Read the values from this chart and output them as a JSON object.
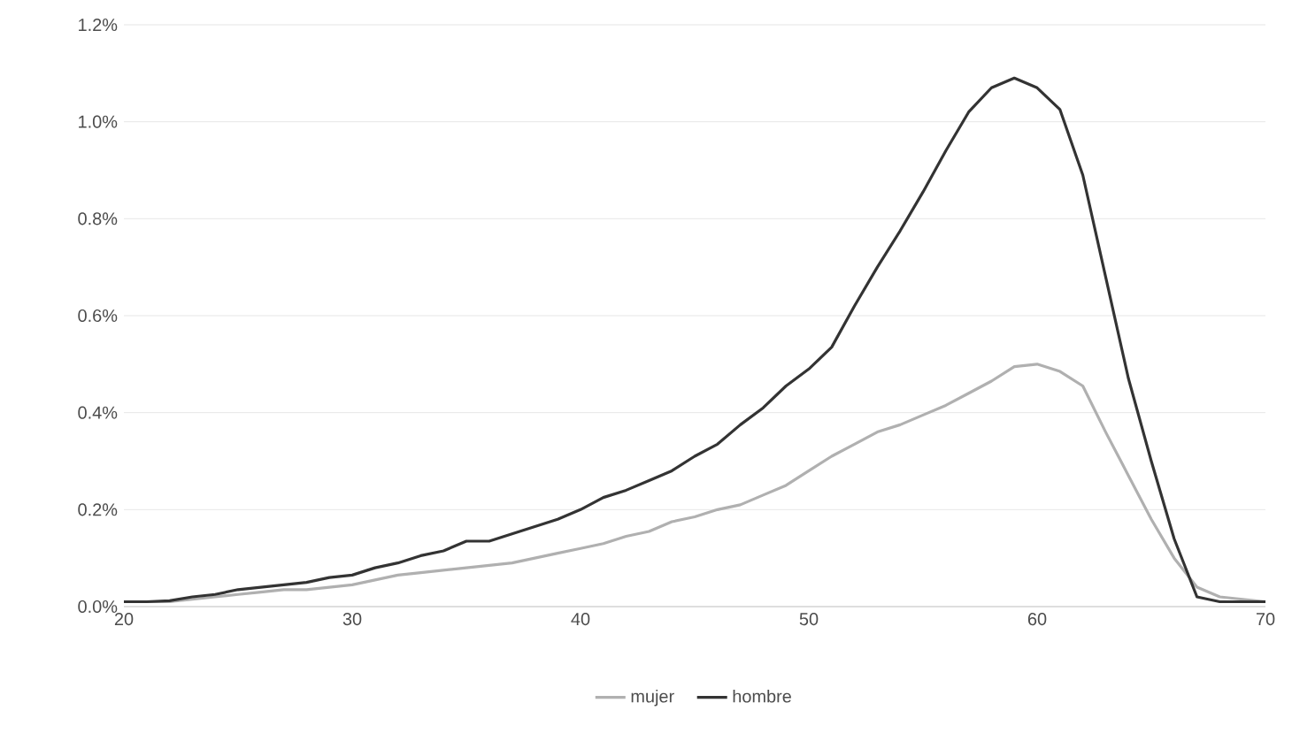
{
  "chart_data": {
    "type": "line",
    "x": [
      20,
      21,
      22,
      23,
      24,
      25,
      26,
      27,
      28,
      29,
      30,
      31,
      32,
      33,
      34,
      35,
      36,
      37,
      38,
      39,
      40,
      41,
      42,
      43,
      44,
      45,
      46,
      47,
      48,
      49,
      50,
      51,
      52,
      53,
      54,
      55,
      56,
      57,
      58,
      59,
      60,
      61,
      62,
      63,
      64,
      65,
      66,
      67,
      68,
      69,
      70
    ],
    "series": [
      {
        "name": "mujer",
        "color": "#b0b0b0",
        "values": [
          0.01,
          0.01,
          0.01,
          0.015,
          0.02,
          0.025,
          0.03,
          0.035,
          0.035,
          0.04,
          0.045,
          0.055,
          0.065,
          0.07,
          0.075,
          0.08,
          0.085,
          0.09,
          0.1,
          0.11,
          0.12,
          0.13,
          0.145,
          0.155,
          0.175,
          0.185,
          0.2,
          0.21,
          0.23,
          0.25,
          0.28,
          0.31,
          0.335,
          0.36,
          0.375,
          0.395,
          0.415,
          0.44,
          0.465,
          0.495,
          0.5,
          0.485,
          0.455,
          0.36,
          0.27,
          0.18,
          0.1,
          0.04,
          0.02,
          0.015,
          0.01
        ]
      },
      {
        "name": "hombre",
        "color": "#333333",
        "values": [
          0.01,
          0.01,
          0.012,
          0.02,
          0.025,
          0.035,
          0.04,
          0.045,
          0.05,
          0.06,
          0.065,
          0.08,
          0.09,
          0.105,
          0.115,
          0.135,
          0.135,
          0.15,
          0.165,
          0.18,
          0.2,
          0.225,
          0.24,
          0.26,
          0.28,
          0.31,
          0.335,
          0.375,
          0.41,
          0.455,
          0.49,
          0.535,
          0.62,
          0.7,
          0.775,
          0.855,
          0.94,
          1.02,
          1.07,
          1.09,
          1.07,
          1.025,
          0.89,
          0.68,
          0.47,
          0.3,
          0.14,
          0.02,
          0.01,
          0.01,
          0.01
        ]
      }
    ],
    "xlim": [
      20,
      70
    ],
    "xticks": [
      20,
      30,
      40,
      50,
      60,
      70
    ],
    "ylim": [
      0,
      1.2
    ],
    "yticks": [
      {
        "value": 0,
        "label": "0.0%"
      },
      {
        "value": 0.2,
        "label": "0.2%"
      },
      {
        "value": 0.4,
        "label": "0.4%"
      },
      {
        "value": 0.6,
        "label": "0.6%"
      },
      {
        "value": 0.8,
        "label": "0.8%"
      },
      {
        "value": 1.0,
        "label": "1.0%"
      },
      {
        "value": 1.2,
        "label": "1.2%"
      }
    ],
    "grid": "y",
    "legend": "bottom",
    "marker": "none",
    "line_style": "solid"
  }
}
